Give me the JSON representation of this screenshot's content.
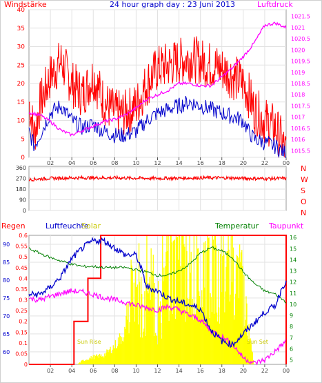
{
  "colors": {
    "wind": "#ff0000",
    "gust_avg": "#0000cc",
    "pressure": "#ff00ff",
    "direction": "#ff0000",
    "rain": "#ff0000",
    "humidity": "#0000cc",
    "solar": "#ffff00",
    "temperature": "#008000",
    "dewpoint": "#ff00ff",
    "frame": "#d9d9d9"
  },
  "chart_data": [
    {
      "type": "line",
      "panel": "wind-pressure",
      "title": "24 hour graph day : 23 Juni 2013",
      "left_label": "Windstärke",
      "right_label": "Luftdruck",
      "x_ticks": [
        "02",
        "04",
        "06",
        "08",
        "10",
        "12",
        "14",
        "16",
        "18",
        "20",
        "22",
        "00"
      ],
      "y_left": {
        "ticks": [
          "0",
          "5",
          "10",
          "15",
          "20",
          "25",
          "30",
          "35",
          "40"
        ],
        "ylim": [
          0,
          40
        ]
      },
      "y_right": {
        "ticks": [
          "1015.5",
          "1016",
          "1016.5",
          "1017",
          "1017.5",
          "1018",
          "1018.5",
          "1019",
          "1019.5",
          "1020",
          "1020.5",
          "1021",
          "1021.5"
        ],
        "ylim": [
          1015.2,
          1021.8
        ]
      },
      "series": [
        {
          "role": "wind_gust",
          "hours": [
            0,
            0.5,
            1,
            1.5,
            2,
            3,
            4,
            5,
            6,
            7,
            8,
            9,
            10,
            11,
            12,
            13,
            14,
            15,
            16,
            17,
            18,
            19,
            20,
            20.5,
            21,
            22,
            23,
            23.5,
            24
          ],
          "values": [
            15,
            6,
            14,
            18,
            22,
            26,
            20,
            17,
            22,
            15,
            12,
            12,
            14,
            20,
            24,
            25,
            26,
            27,
            26,
            25,
            24,
            22,
            20,
            17,
            13,
            10,
            8,
            5,
            1
          ]
        },
        {
          "role": "wind_avg",
          "hours": [
            0,
            0.5,
            1,
            1.5,
            2,
            3,
            4,
            5,
            6,
            7,
            8,
            9,
            10,
            11,
            12,
            13,
            14,
            15,
            16,
            17,
            18,
            19,
            20,
            20.5,
            21,
            22,
            23,
            23.5,
            24
          ],
          "values": [
            7,
            3,
            6,
            9,
            12,
            14,
            10,
            8,
            9,
            7,
            6,
            6,
            7,
            10,
            12,
            13,
            14,
            15,
            14,
            13,
            12,
            11,
            10,
            7,
            5,
            4,
            3,
            2,
            1
          ]
        },
        {
          "role": "pressure",
          "hours": [
            0,
            1,
            2,
            3,
            4,
            5,
            6,
            7,
            8,
            9,
            10,
            11,
            12,
            13,
            14,
            15,
            16,
            17,
            18,
            19,
            20,
            21,
            22,
            23,
            24
          ],
          "values": [
            1017.2,
            1017.1,
            1016.8,
            1016.4,
            1016.2,
            1016.4,
            1016.6,
            1016.8,
            1016.9,
            1017.1,
            1017.4,
            1017.8,
            1018.0,
            1018.2,
            1018.5,
            1018.5,
            1018.4,
            1018.4,
            1018.8,
            1019.2,
            1019.7,
            1020.3,
            1021.1,
            1021.2,
            1021.0
          ]
        }
      ]
    },
    {
      "type": "scatter",
      "panel": "wind-direction",
      "y_ticks": [
        "360",
        "270",
        "180",
        "90",
        "0"
      ],
      "ylim": [
        0,
        360
      ],
      "compass": [
        "N",
        "W",
        "S",
        "O",
        "N"
      ],
      "series": [
        {
          "role": "direction",
          "hours": [
            0,
            2,
            4,
            6,
            8,
            10,
            12,
            14,
            16,
            18,
            20,
            22,
            24
          ],
          "values": [
            260,
            270,
            275,
            275,
            275,
            272,
            270,
            272,
            275,
            275,
            270,
            268,
            270
          ]
        }
      ]
    },
    {
      "type": "line",
      "panel": "climate",
      "labels": {
        "rain": "Regen",
        "humidity": "Luftfeuchte",
        "solar": "Solar",
        "temperature": "Temperatur",
        "dewpoint": "Taupunkt"
      },
      "annotations": {
        "sunrise": "Sun Rise",
        "sunset": "Sun Set"
      },
      "x_ticks": [
        "02",
        "04",
        "06",
        "08",
        "10",
        "12",
        "14",
        "16",
        "18",
        "20",
        "22",
        "00"
      ],
      "y_humidity": {
        "ticks": [
          "60",
          "65",
          "70",
          "75",
          "80",
          "85",
          "90"
        ],
        "ylim": [
          56.5,
          92.5
        ]
      },
      "y_rain": {
        "ticks": [
          "0",
          "0.05",
          "0.1",
          "0.15",
          "0.2",
          "0.25",
          "0.3",
          "0.35",
          "0.4",
          "0.45",
          "0.5",
          "0.55",
          "0.6"
        ],
        "ylim": [
          0,
          0.6
        ]
      },
      "y_temp": {
        "ticks": [
          "5",
          "6",
          "7",
          "8",
          "9",
          "10",
          "11",
          "12",
          "13",
          "14",
          "15",
          "16"
        ],
        "ylim": [
          4.6,
          16.2
        ]
      },
      "series": [
        {
          "role": "rain",
          "hours": [
            0,
            4.2,
            4.2,
            5.5,
            5.5,
            6.7,
            6.7,
            24,
            24
          ],
          "values": [
            0,
            0,
            0.2,
            0.2,
            0.4,
            0.4,
            0.6,
            0.6,
            0
          ]
        },
        {
          "role": "humidity",
          "hours": [
            0,
            1,
            2,
            3,
            4,
            5,
            6,
            7,
            8,
            9,
            10,
            10.5,
            11,
            12,
            13,
            14,
            15,
            16,
            17,
            18,
            19,
            20,
            21,
            22,
            23,
            23.5,
            24
          ],
          "values": [
            76,
            76,
            78,
            81,
            86,
            89,
            91,
            91,
            89,
            87,
            87,
            83,
            78,
            77,
            75,
            74,
            73,
            72,
            66,
            63,
            62,
            65,
            68,
            71,
            73,
            77,
            80
          ]
        },
        {
          "role": "temperature",
          "hours": [
            0,
            1,
            2,
            3,
            4,
            5,
            6,
            7,
            8,
            9,
            10,
            11,
            12,
            13,
            14,
            15,
            16,
            17,
            18,
            19,
            20,
            21,
            22,
            23,
            24
          ],
          "values": [
            15.0,
            14.6,
            14.2,
            13.9,
            13.6,
            13.4,
            13.4,
            13.3,
            13.3,
            13.3,
            13.1,
            12.9,
            12.6,
            12.6,
            13.0,
            13.6,
            14.6,
            15.1,
            14.8,
            14.2,
            12.9,
            11.9,
            11.2,
            10.9,
            10.2
          ]
        },
        {
          "role": "dewpoint",
          "hours": [
            0,
            1,
            2,
            3,
            4,
            5,
            6,
            7,
            8,
            9,
            10,
            11,
            12,
            13,
            14,
            15,
            16,
            17,
            18,
            19,
            20,
            21,
            22,
            23,
            24
          ],
          "values": [
            10.5,
            10.4,
            10.7,
            11.0,
            11.2,
            11.1,
            10.9,
            10.6,
            10.4,
            10.2,
            9.9,
            9.7,
            9.5,
            9.8,
            9.5,
            9.0,
            8.6,
            7.6,
            7.1,
            6.4,
            5.2,
            4.7,
            5.0,
            5.8,
            6.7
          ]
        },
        {
          "role": "solar",
          "hours": [
            0,
            4.5,
            5,
            6,
            7,
            8,
            9,
            9.5,
            10,
            11,
            12,
            13,
            14,
            15,
            16,
            17,
            18,
            19,
            20,
            20.5,
            21,
            24
          ],
          "values": [
            0,
            0,
            0.02,
            0.04,
            0.05,
            0.1,
            0.18,
            0.5,
            0.3,
            0.35,
            0.2,
            0.55,
            0.6,
            0.5,
            0.55,
            0.6,
            0.5,
            0.55,
            0.45,
            0.2,
            0,
            0
          ]
        }
      ]
    }
  ]
}
